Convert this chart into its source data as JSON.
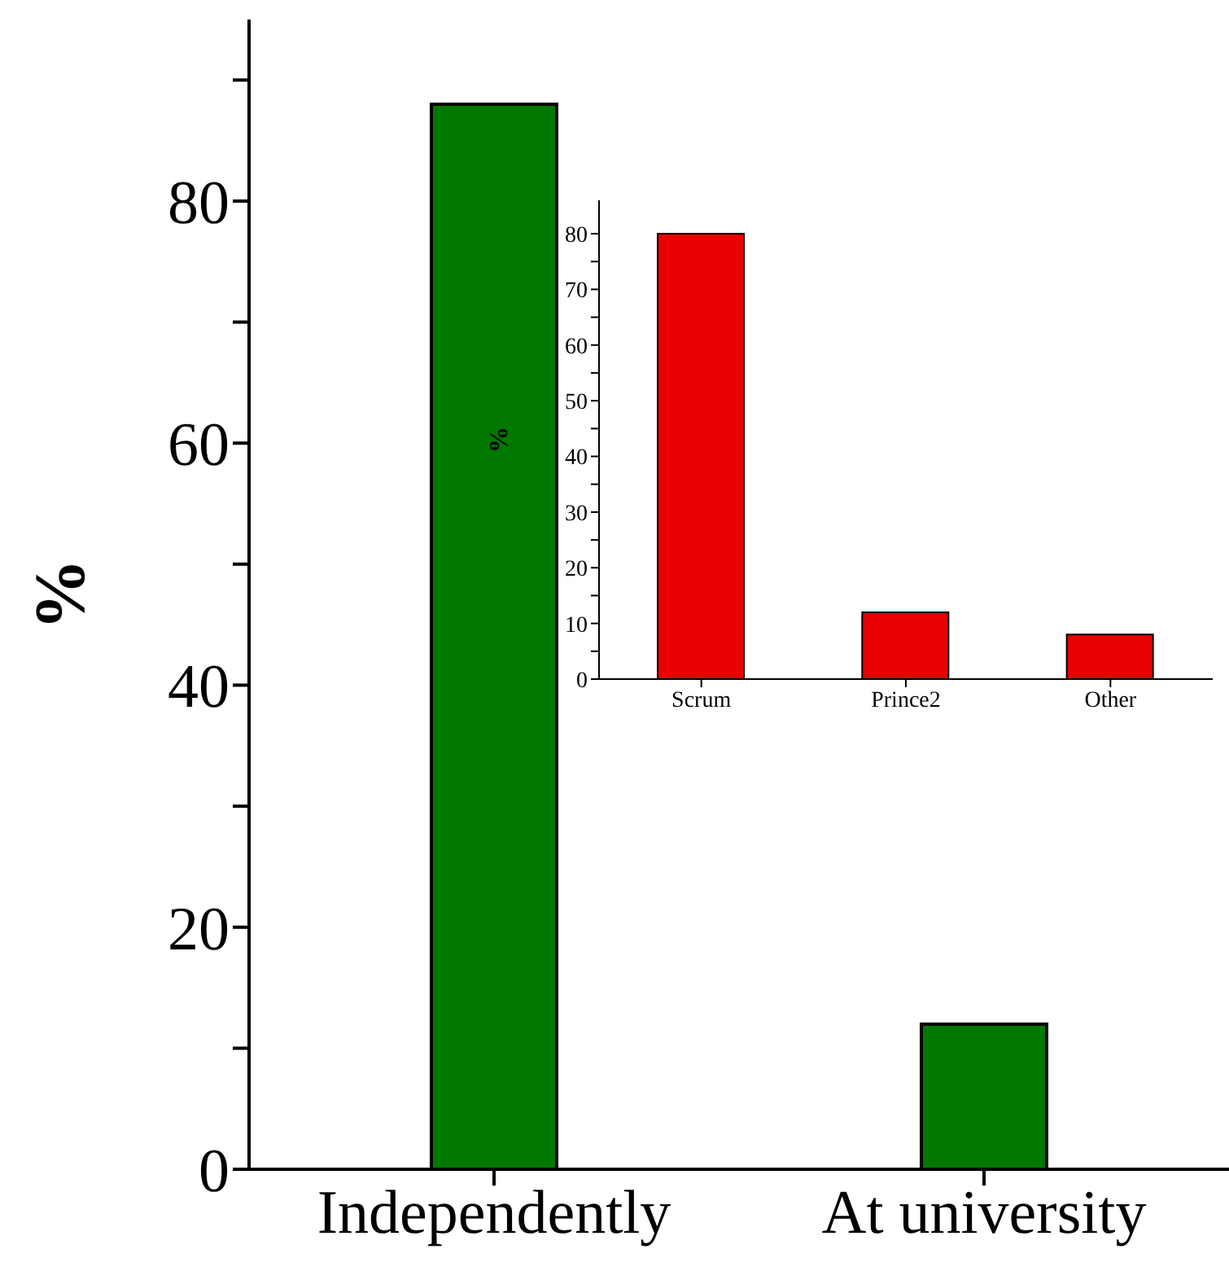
{
  "chart_data": [
    {
      "type": "bar",
      "ylabel": "%",
      "categories": [
        "Independently",
        "At university"
      ],
      "values": [
        88,
        12
      ],
      "color": "#007800",
      "ylim": [
        0,
        95
      ],
      "yticks": [
        0,
        {
          "value": 10,
          "label": null
        },
        20,
        {
          "value": 30,
          "label": null
        },
        40,
        {
          "value": 50,
          "label": null
        },
        60,
        {
          "value": 70,
          "label": null
        },
        80,
        {
          "value": 90,
          "label": null
        }
      ],
      "grid": false,
      "legend": false
    },
    {
      "type": "bar",
      "ylabel": "%",
      "categories": [
        "Scrum",
        "Prince2",
        "Other"
      ],
      "values": [
        80,
        12,
        8
      ],
      "color": "#e80000",
      "ylim": [
        0,
        86
      ],
      "yticks": [
        0,
        {
          "value": 5,
          "label": null
        },
        10,
        {
          "value": 15,
          "label": null
        },
        20,
        {
          "value": 25,
          "label": null
        },
        30,
        {
          "value": 35,
          "label": null
        },
        40,
        {
          "value": 45,
          "label": null
        },
        50,
        {
          "value": 55,
          "label": null
        },
        60,
        {
          "value": 65,
          "label": null
        },
        70,
        {
          "value": 75,
          "label": null
        },
        80
      ],
      "grid": false,
      "legend": false
    }
  ]
}
